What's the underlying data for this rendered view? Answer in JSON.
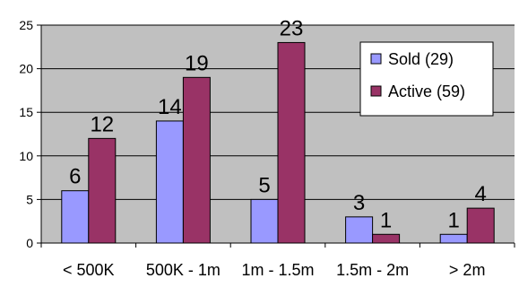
{
  "chart_data": {
    "type": "bar",
    "categories": [
      "< 500K",
      "500K - 1m",
      "1m - 1.5m",
      "1.5m - 2m",
      "> 2m"
    ],
    "series": [
      {
        "name": "Sold (29)",
        "values": [
          6,
          14,
          5,
          3,
          1
        ],
        "color": "#9999FF"
      },
      {
        "name": "Active (59)",
        "values": [
          12,
          19,
          23,
          1,
          4
        ],
        "color": "#993366"
      }
    ],
    "ylim": [
      0,
      25
    ],
    "yticks": [
      0,
      5,
      10,
      15,
      20,
      25
    ],
    "grid": true,
    "plot_background": "#C0C0C0",
    "legend_position": "top-right",
    "data_labels": true
  }
}
